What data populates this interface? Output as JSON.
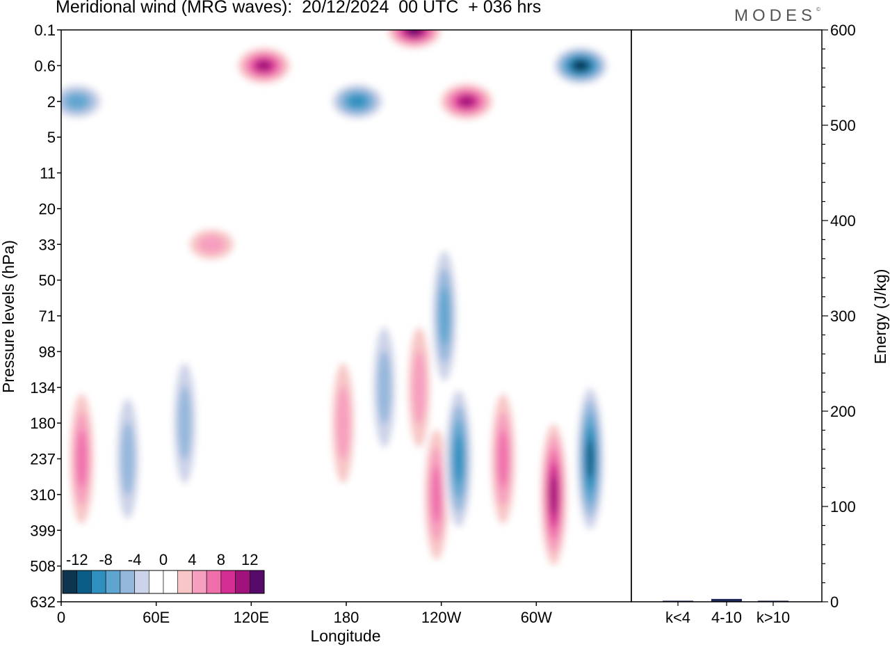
{
  "title": "Meridional wind (MRG waves):  20/12/2024  00 UTC  + 036 hrs",
  "logo": {
    "text": "MODES",
    "mark": "©"
  },
  "chart_data": [
    {
      "type": "heatmap",
      "variable": "Meridional wind",
      "xlabel": "Longitude",
      "ylabel": "Pressure levels (hPa)",
      "x_ticks": [
        "0",
        "60E",
        "120E",
        "180",
        "120W",
        "60W"
      ],
      "y_ticks": [
        "0.1",
        "0.6",
        "2",
        "5",
        "11",
        "20",
        "33",
        "50",
        "71",
        "98",
        "134",
        "180",
        "237",
        "310",
        "399",
        "508",
        "632"
      ],
      "colorbar": {
        "tick_labels": [
          "-12",
          "-8",
          "-4",
          "0",
          "4",
          "8",
          "12"
        ],
        "levels": [
          -14,
          -12,
          -10,
          -8,
          -6,
          -4,
          -2,
          0,
          2,
          4,
          6,
          8,
          10,
          12,
          14
        ],
        "colors": [
          "#0d3550",
          "#0a5d87",
          "#2f8fbe",
          "#5ea6d0",
          "#94b8dc",
          "#cdd3e8",
          "#ffffff",
          "#ffffff",
          "#f8c6c6",
          "#f79fbf",
          "#ef6fab",
          "#d42d94",
          "#a1127a",
          "#560b6b"
        ]
      },
      "features": [
        {
          "sign": "positive",
          "lon": 13,
          "level": "237",
          "value": 8
        },
        {
          "sign": "negative",
          "lon": 42,
          "level": "237",
          "value": -6
        },
        {
          "sign": "negative",
          "lon": 78,
          "level": "180",
          "value": -6
        },
        {
          "sign": "positive",
          "lon": 178,
          "level": "180",
          "value": 6
        },
        {
          "sign": "negative",
          "lon": 204,
          "level": "134",
          "value": -6
        },
        {
          "sign": "positive",
          "lon": 226,
          "level": "134",
          "value": 6
        },
        {
          "sign": "positive",
          "lon": 237,
          "level": "310",
          "value": 8
        },
        {
          "sign": "negative",
          "lon": 251,
          "level": "237",
          "value": -10
        },
        {
          "sign": "positive",
          "lon": 279,
          "level": "237",
          "value": 8
        },
        {
          "sign": "positive",
          "lon": 311,
          "level": "310",
          "value": 12
        },
        {
          "sign": "negative",
          "lon": 334,
          "level": "237",
          "value": -12
        },
        {
          "sign": "negative",
          "lon": 242,
          "level": "71",
          "value": -8
        },
        {
          "sign": "positive",
          "lon": 223,
          "level": "0.1",
          "value": 14
        },
        {
          "sign": "positive",
          "lon": 256,
          "level": "2",
          "value": 12
        },
        {
          "sign": "negative",
          "lon": 328,
          "level": "0.6",
          "value": -14
        },
        {
          "sign": "negative",
          "lon": 187,
          "level": "2",
          "value": -10
        },
        {
          "sign": "negative",
          "lon": 10,
          "level": "2",
          "value": -8
        },
        {
          "sign": "positive",
          "lon": 128,
          "level": "0.6",
          "value": 12
        },
        {
          "sign": "positive",
          "lon": 95,
          "level": "33",
          "value": 6
        }
      ]
    },
    {
      "type": "bar",
      "categories": [
        "k<4",
        "4-10",
        "k>10"
      ],
      "values": [
        0.5,
        3,
        0.5
      ],
      "ylabel": "Energy (J/kg)",
      "ylim": [
        0,
        600
      ],
      "y_ticks": [
        "0",
        "100",
        "200",
        "300",
        "400",
        "500",
        "600"
      ],
      "bar_color": "#1f2a5a"
    }
  ]
}
